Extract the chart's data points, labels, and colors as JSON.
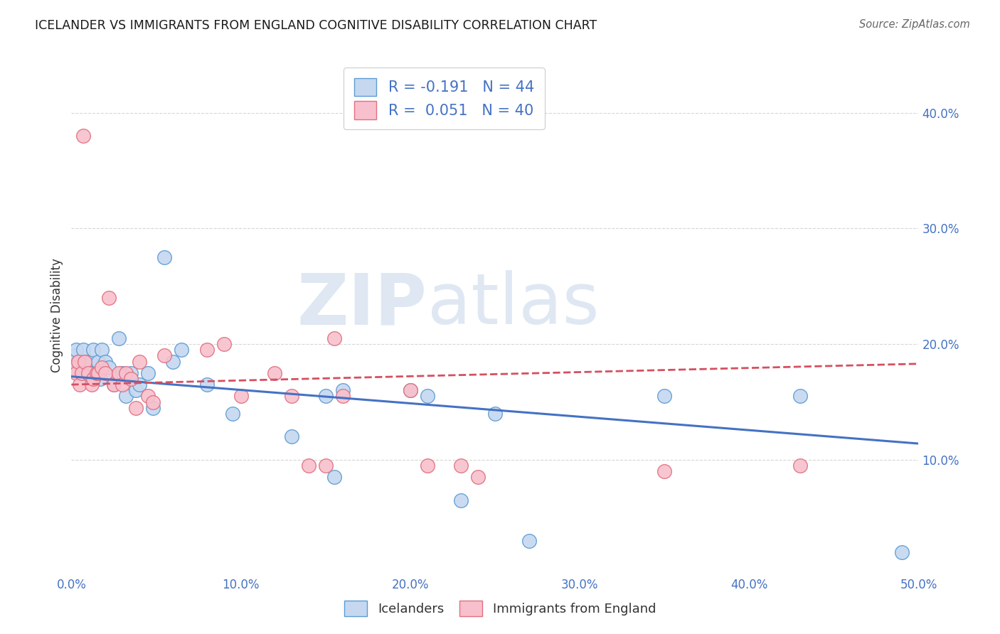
{
  "title": "ICELANDER VS IMMIGRANTS FROM ENGLAND COGNITIVE DISABILITY CORRELATION CHART",
  "source": "Source: ZipAtlas.com",
  "ylabel": "Cognitive Disability",
  "xlim": [
    0.0,
    0.5
  ],
  "ylim": [
    0.0,
    0.45
  ],
  "xtick_labels": [
    "0.0%",
    "10.0%",
    "20.0%",
    "30.0%",
    "40.0%",
    "50.0%"
  ],
  "xtick_vals": [
    0.0,
    0.1,
    0.2,
    0.3,
    0.4,
    0.5
  ],
  "ytick_labels": [
    "10.0%",
    "20.0%",
    "30.0%",
    "40.0%"
  ],
  "ytick_vals": [
    0.1,
    0.2,
    0.3,
    0.4
  ],
  "icelanders_fill": "#c5d8f0",
  "immigrants_fill": "#f8c0cc",
  "icelanders_edge": "#5b9bd5",
  "immigrants_edge": "#e07080",
  "icelanders_line_color": "#4472c4",
  "immigrants_line_color": "#d45060",
  "R_icelanders": -0.191,
  "N_icelanders": 44,
  "R_immigrants": 0.051,
  "N_immigrants": 40,
  "legend_label_1": "Icelanders",
  "legend_label_2": "Immigrants from England",
  "watermark_zip": "ZIP",
  "watermark_atlas": "atlas",
  "icelanders_x": [
    0.001,
    0.002,
    0.003,
    0.004,
    0.005,
    0.006,
    0.007,
    0.008,
    0.01,
    0.011,
    0.012,
    0.013,
    0.015,
    0.016,
    0.017,
    0.018,
    0.02,
    0.022,
    0.025,
    0.028,
    0.03,
    0.032,
    0.035,
    0.038,
    0.04,
    0.045,
    0.048,
    0.055,
    0.06,
    0.065,
    0.08,
    0.095,
    0.13,
    0.15,
    0.155,
    0.16,
    0.2,
    0.21,
    0.23,
    0.25,
    0.27,
    0.35,
    0.43,
    0.49
  ],
  "icelanders_y": [
    0.185,
    0.19,
    0.195,
    0.185,
    0.18,
    0.175,
    0.195,
    0.185,
    0.175,
    0.185,
    0.175,
    0.195,
    0.175,
    0.185,
    0.17,
    0.195,
    0.185,
    0.18,
    0.165,
    0.205,
    0.175,
    0.155,
    0.175,
    0.16,
    0.165,
    0.175,
    0.145,
    0.275,
    0.185,
    0.195,
    0.165,
    0.14,
    0.12,
    0.155,
    0.085,
    0.16,
    0.16,
    0.155,
    0.065,
    0.14,
    0.03,
    0.155,
    0.155,
    0.02
  ],
  "immigrants_x": [
    0.001,
    0.003,
    0.004,
    0.005,
    0.006,
    0.007,
    0.008,
    0.01,
    0.012,
    0.013,
    0.015,
    0.016,
    0.018,
    0.02,
    0.022,
    0.025,
    0.028,
    0.03,
    0.032,
    0.035,
    0.038,
    0.04,
    0.045,
    0.048,
    0.055,
    0.08,
    0.09,
    0.1,
    0.12,
    0.13,
    0.14,
    0.15,
    0.155,
    0.16,
    0.2,
    0.21,
    0.23,
    0.24,
    0.35,
    0.43
  ],
  "immigrants_y": [
    0.18,
    0.175,
    0.185,
    0.165,
    0.175,
    0.38,
    0.185,
    0.175,
    0.165,
    0.17,
    0.175,
    0.175,
    0.18,
    0.175,
    0.24,
    0.165,
    0.175,
    0.165,
    0.175,
    0.17,
    0.145,
    0.185,
    0.155,
    0.15,
    0.19,
    0.195,
    0.2,
    0.155,
    0.175,
    0.155,
    0.095,
    0.095,
    0.205,
    0.155,
    0.16,
    0.095,
    0.095,
    0.085,
    0.09,
    0.095
  ]
}
